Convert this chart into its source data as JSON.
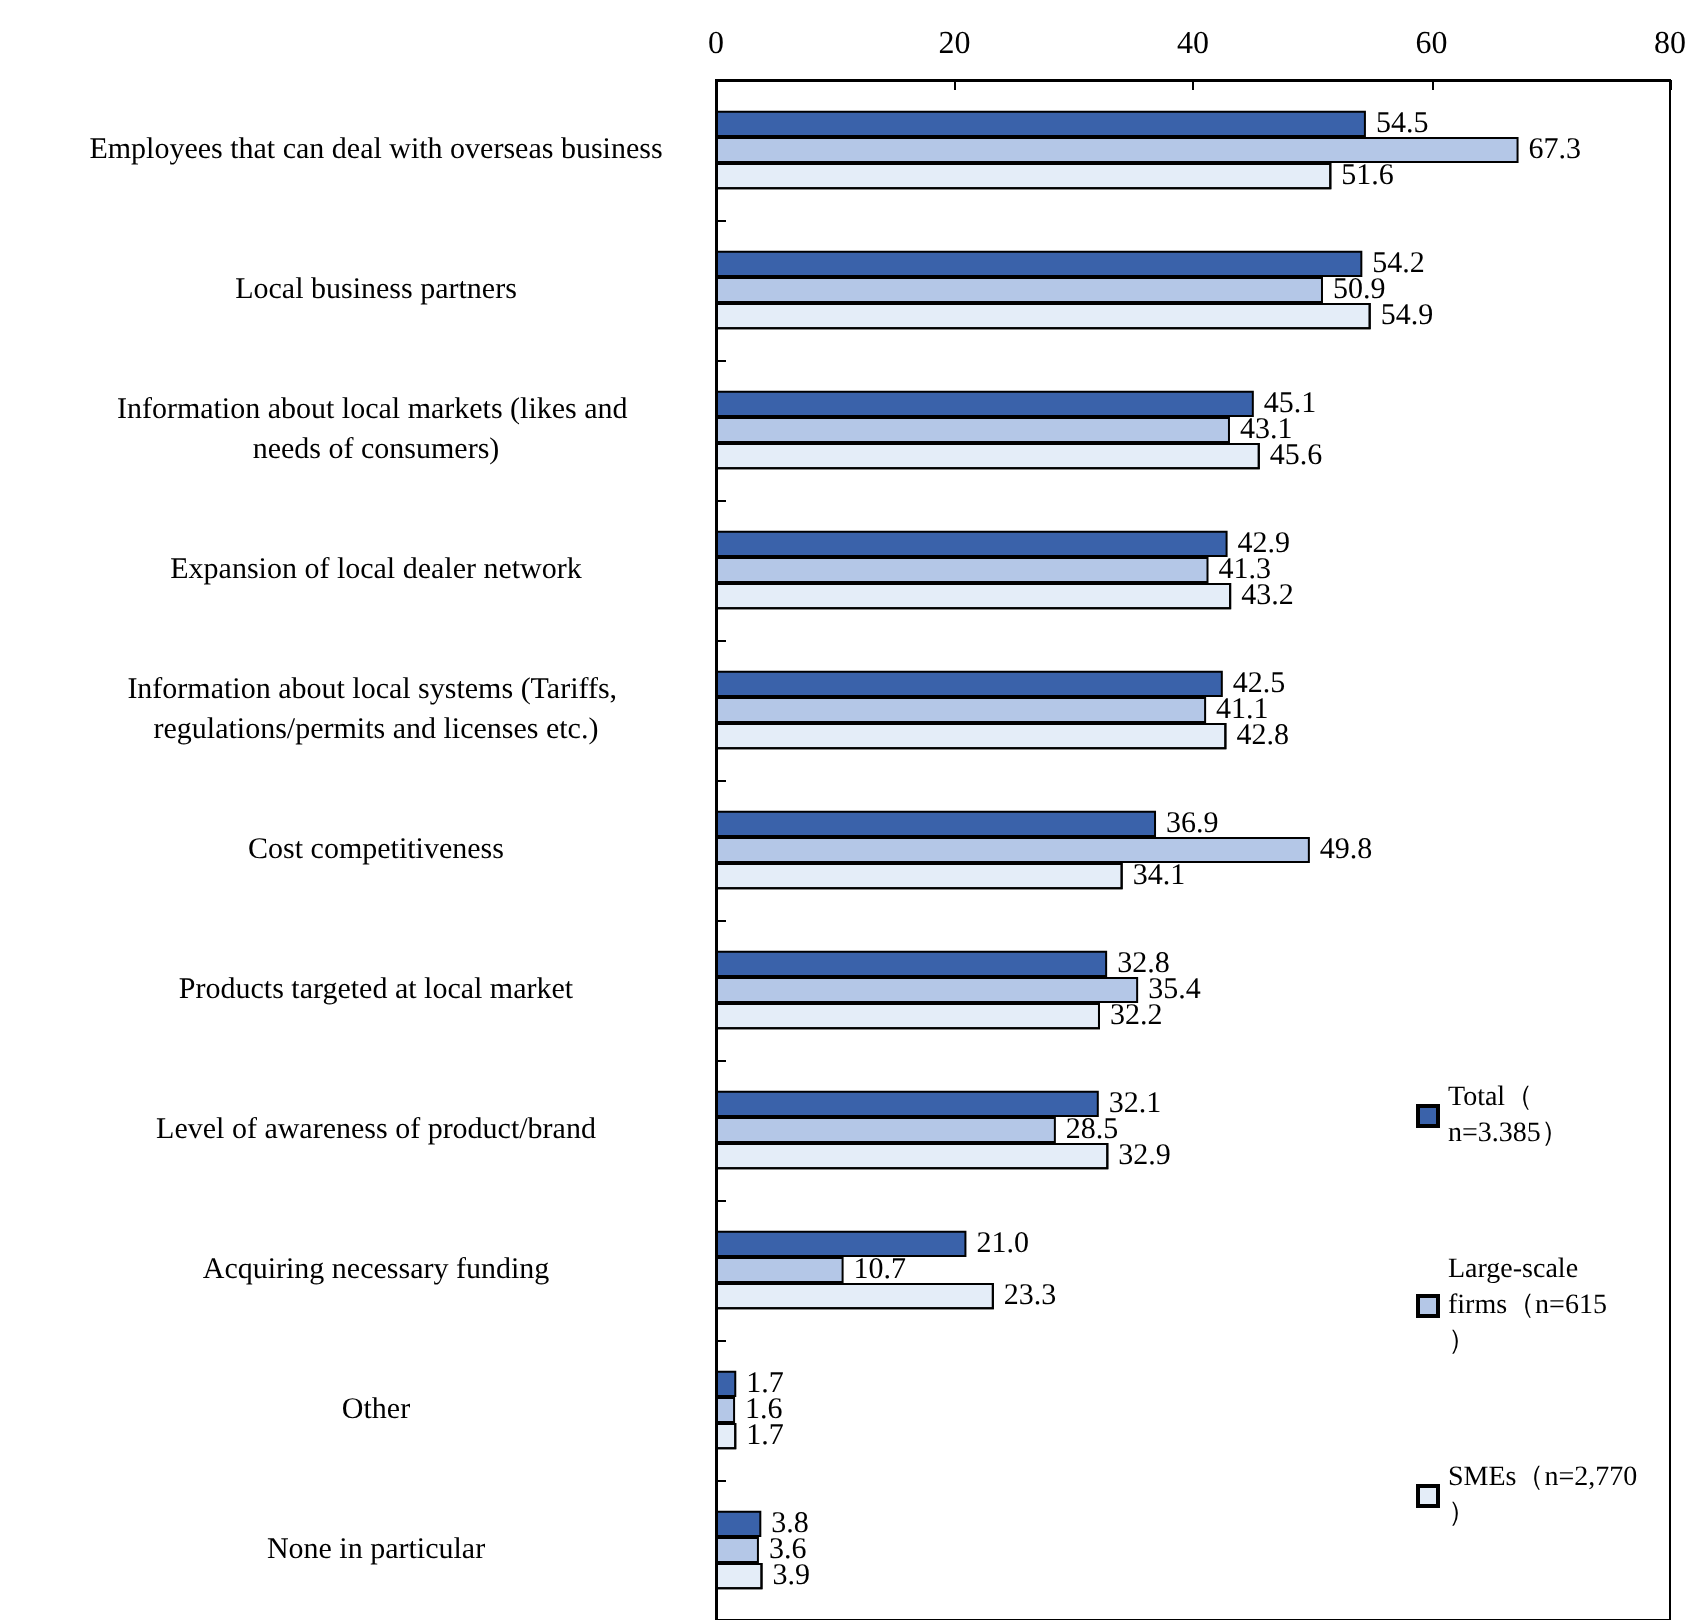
{
  "chart_data": {
    "type": "bar",
    "orientation": "horizontal",
    "categories": [
      "Employees that can deal with overseas business",
      "Local business partners",
      "Information about local markets (likes and needs of consumers)",
      "Expansion of local dealer network",
      "Information about local systems (Tariffs, regulations/permits and licenses etc.)",
      "Cost competitiveness",
      "Products targeted at local market",
      "Level of awareness of product/brand",
      "Acquiring necessary funding",
      "Other",
      "None in particular"
    ],
    "series": [
      {
        "name": "Total（n=3.385）",
        "color": "#3a62aa",
        "values": [
          54.5,
          54.2,
          45.1,
          42.9,
          42.5,
          36.9,
          32.8,
          32.1,
          21.0,
          1.7,
          3.8
        ],
        "value_labels": [
          "54.5",
          "54.2",
          "45.1",
          "42.9",
          "42.5",
          "36.9",
          "32.8",
          "32.1",
          "21.0",
          "1.7",
          "3.8"
        ]
      },
      {
        "name": "Large-scale firms（n=615）",
        "color": "#b4c7e7",
        "values": [
          67.3,
          50.9,
          43.1,
          41.3,
          41.1,
          49.8,
          35.4,
          28.5,
          10.7,
          1.6,
          3.6
        ],
        "value_labels": [
          "67.3",
          "50.9",
          "43.1",
          "41.3",
          "41.1",
          "49.8",
          "35.4",
          "28.5",
          "10.7",
          "1.6",
          "3.6"
        ]
      },
      {
        "name": "SMEs（n=2,770）",
        "color": "#e4edf8",
        "values": [
          51.6,
          54.9,
          45.6,
          43.2,
          42.8,
          34.1,
          32.2,
          32.9,
          23.3,
          1.7,
          3.9
        ],
        "value_labels": [
          "51.6",
          "54.9",
          "45.6",
          "43.2",
          "42.8",
          "34.1",
          "32.2",
          "32.9",
          "23.3",
          "1.7",
          "3.9"
        ]
      }
    ],
    "xlim": [
      0,
      80
    ],
    "xticks": [
      0,
      20,
      40,
      60,
      80
    ],
    "grid": false,
    "legend": "right"
  }
}
